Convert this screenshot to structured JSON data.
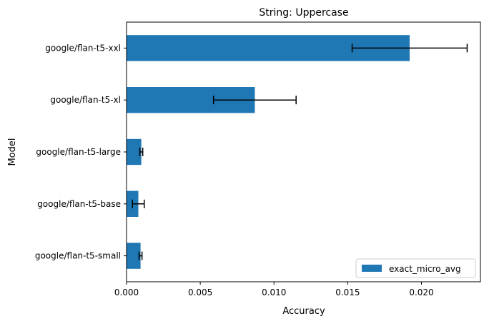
{
  "chart_data": {
    "type": "bar",
    "orientation": "horizontal",
    "title": "String: Uppercase",
    "xlabel": "Accuracy",
    "ylabel": "Model",
    "categories": [
      "google/flan-t5-small",
      "google/flan-t5-base",
      "google/flan-t5-large",
      "google/flan-t5-xl",
      "google/flan-t5-xxl"
    ],
    "series": [
      {
        "name": "exact_micro_avg",
        "color": "#1f77b4",
        "values": [
          0.00095,
          0.0008,
          0.001,
          0.0087,
          0.0192
        ],
        "error": [
          0.0001,
          0.0004,
          0.0001,
          0.0028,
          0.0039
        ]
      }
    ],
    "xlim": [
      0,
      0.024
    ],
    "xticks": [
      "0.000",
      "0.005",
      "0.010",
      "0.015",
      "0.020"
    ],
    "grid": false,
    "legend_position": "lower right"
  }
}
